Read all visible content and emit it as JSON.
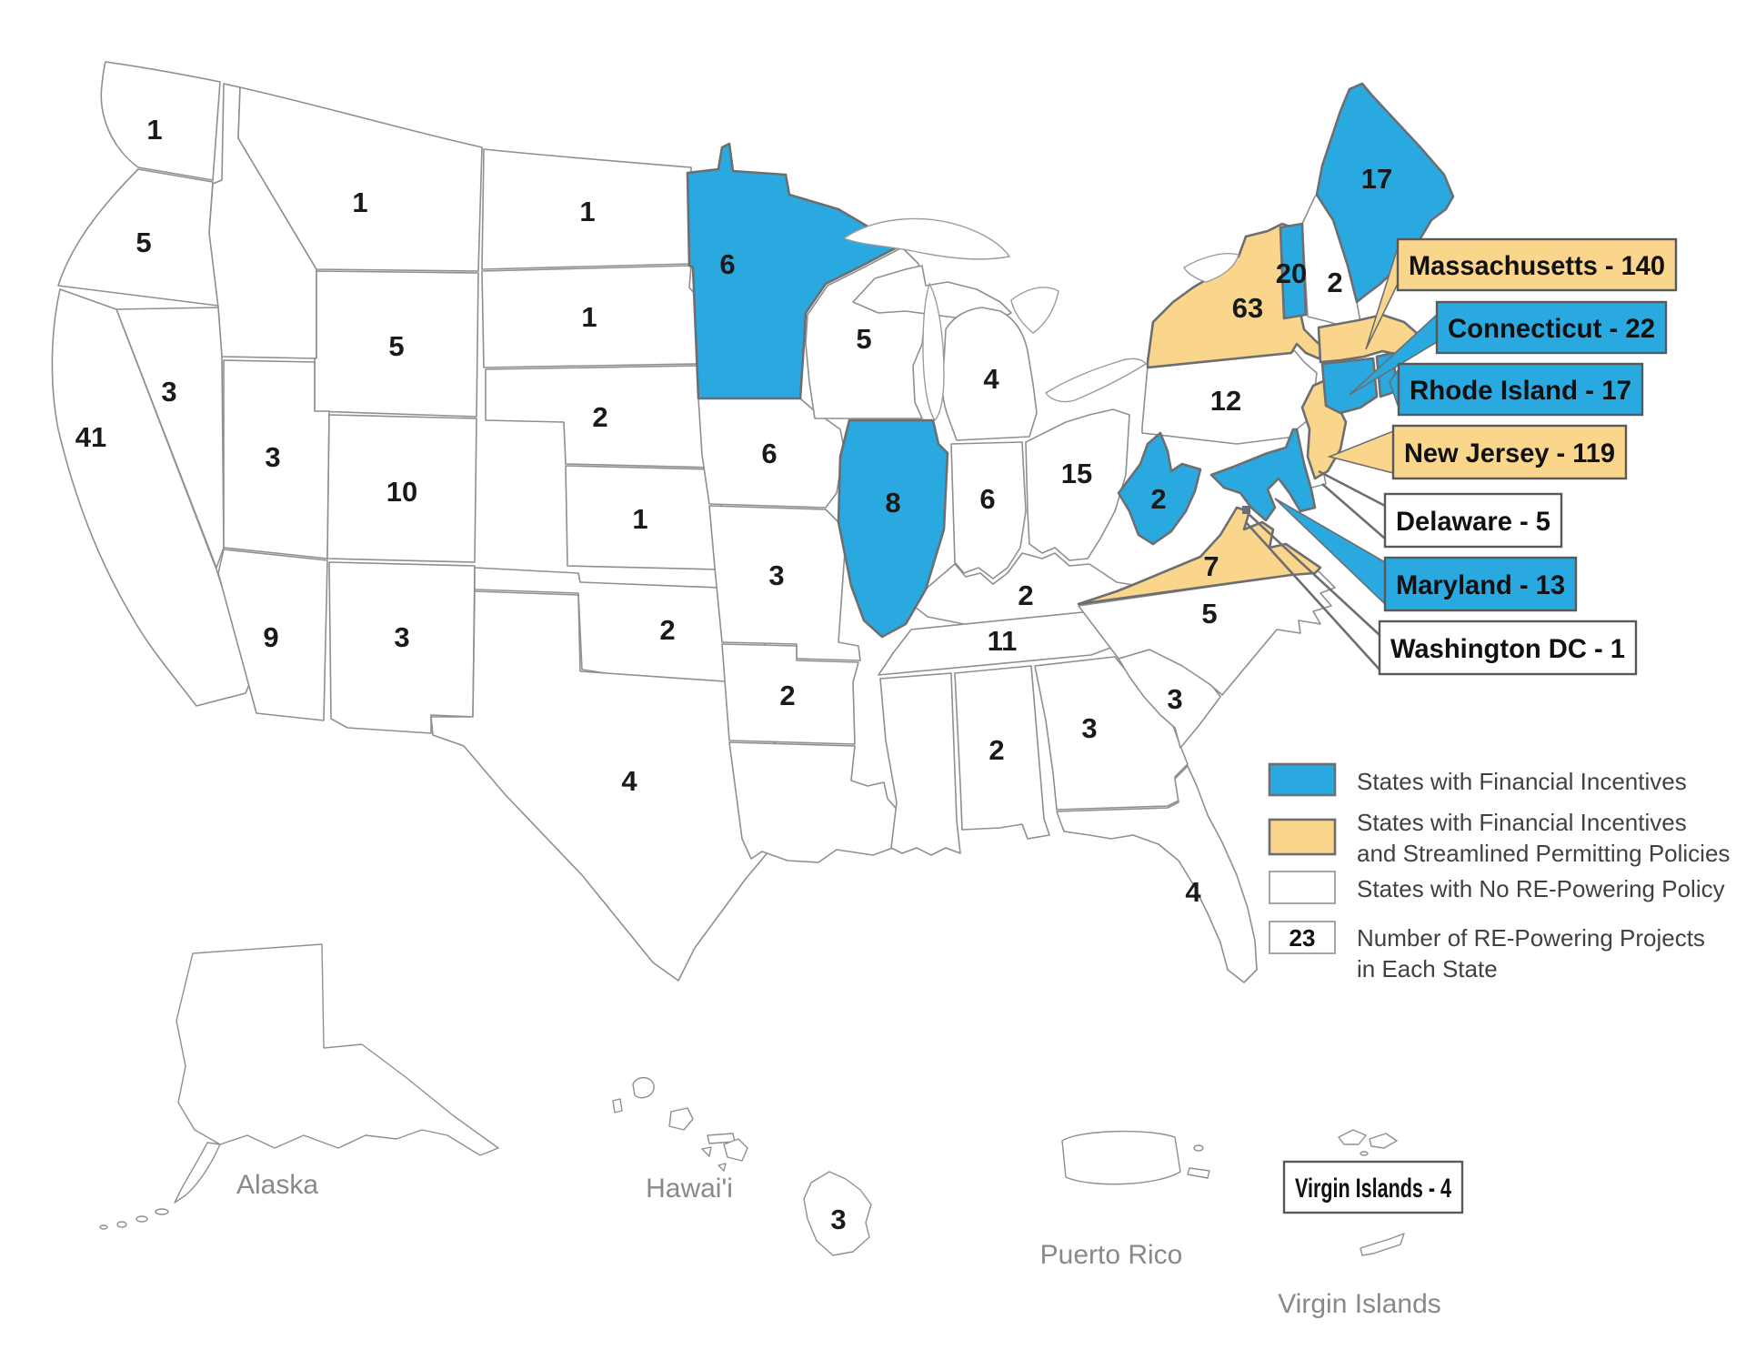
{
  "colors": {
    "blue": "#29A9E0",
    "tan": "#FAD68C",
    "white": "#FFFFFF",
    "border_gray": "#6D6E71",
    "label_gray": "#868A8D"
  },
  "legend": {
    "items": [
      {
        "swatch": "blue",
        "swatch_text": "",
        "label": "States with Financial Incentives",
        "label2": ""
      },
      {
        "swatch": "tan",
        "swatch_text": "",
        "label": "States with Financial Incentives",
        "label2": "and Streamlined Permitting Policies"
      },
      {
        "swatch": "white",
        "swatch_text": "",
        "label": "States with No RE-Powering Policy",
        "label2": ""
      },
      {
        "swatch": "white",
        "swatch_text": "23",
        "label": "Number of RE-Powering Projects",
        "label2": "in Each State"
      }
    ]
  },
  "states": [
    {
      "abbr": "WA",
      "name": "Washington",
      "projects": 1,
      "policy": "none"
    },
    {
      "abbr": "OR",
      "name": "Oregon",
      "projects": 5,
      "policy": "none"
    },
    {
      "abbr": "CA",
      "name": "California",
      "projects": 41,
      "policy": "none"
    },
    {
      "abbr": "NV",
      "name": "Nevada",
      "projects": 3,
      "policy": "none"
    },
    {
      "abbr": "ID",
      "name": "Idaho",
      "projects": null,
      "policy": "none"
    },
    {
      "abbr": "MT",
      "name": "Montana",
      "projects": 1,
      "policy": "none"
    },
    {
      "abbr": "WY",
      "name": "Wyoming",
      "projects": 5,
      "policy": "none"
    },
    {
      "abbr": "UT",
      "name": "Utah",
      "projects": 3,
      "policy": "none"
    },
    {
      "abbr": "CO",
      "name": "Colorado",
      "projects": 10,
      "policy": "none"
    },
    {
      "abbr": "AZ",
      "name": "Arizona",
      "projects": 9,
      "policy": "none"
    },
    {
      "abbr": "NM",
      "name": "New Mexico",
      "projects": 3,
      "policy": "none"
    },
    {
      "abbr": "ND",
      "name": "North Dakota",
      "projects": 1,
      "policy": "none"
    },
    {
      "abbr": "SD",
      "name": "South Dakota",
      "projects": 1,
      "policy": "none"
    },
    {
      "abbr": "NE",
      "name": "Nebraska",
      "projects": 2,
      "policy": "none"
    },
    {
      "abbr": "KS",
      "name": "Kansas",
      "projects": 1,
      "policy": "none"
    },
    {
      "abbr": "OK",
      "name": "Oklahoma",
      "projects": 2,
      "policy": "none"
    },
    {
      "abbr": "TX",
      "name": "Texas",
      "projects": 4,
      "policy": "none"
    },
    {
      "abbr": "MN",
      "name": "Minnesota",
      "projects": 6,
      "policy": "financial"
    },
    {
      "abbr": "IA",
      "name": "Iowa",
      "projects": 6,
      "policy": "none"
    },
    {
      "abbr": "MO",
      "name": "Missouri",
      "projects": 3,
      "policy": "none"
    },
    {
      "abbr": "AR",
      "name": "Arkansas",
      "projects": 2,
      "policy": "none"
    },
    {
      "abbr": "LA",
      "name": "Louisiana",
      "projects": null,
      "policy": "none"
    },
    {
      "abbr": "WI",
      "name": "Wisconsin",
      "projects": 5,
      "policy": "none"
    },
    {
      "abbr": "IL",
      "name": "Illinois",
      "projects": 8,
      "policy": "financial"
    },
    {
      "abbr": "MI",
      "name": "Michigan",
      "projects": 4,
      "policy": "none"
    },
    {
      "abbr": "IN",
      "name": "Indiana",
      "projects": 6,
      "policy": "none"
    },
    {
      "abbr": "OH",
      "name": "Ohio",
      "projects": 15,
      "policy": "none"
    },
    {
      "abbr": "KY",
      "name": "Kentucky",
      "projects": 2,
      "policy": "none"
    },
    {
      "abbr": "TN",
      "name": "Tennessee",
      "projects": 11,
      "policy": "none"
    },
    {
      "abbr": "MS",
      "name": "Mississippi",
      "projects": null,
      "policy": "none"
    },
    {
      "abbr": "AL",
      "name": "Alabama",
      "projects": 2,
      "policy": "none"
    },
    {
      "abbr": "GA",
      "name": "Georgia",
      "projects": 3,
      "policy": "none"
    },
    {
      "abbr": "SC",
      "name": "South Carolina",
      "projects": 3,
      "policy": "none"
    },
    {
      "abbr": "NC",
      "name": "North Carolina",
      "projects": 5,
      "policy": "none"
    },
    {
      "abbr": "FL",
      "name": "Florida",
      "projects": 4,
      "policy": "none"
    },
    {
      "abbr": "WV",
      "name": "West Virginia",
      "projects": 2,
      "policy": "financial"
    },
    {
      "abbr": "VA",
      "name": "Virginia",
      "projects": 7,
      "policy": "financial_streamlined"
    },
    {
      "abbr": "PA",
      "name": "Pennsylvania",
      "projects": 12,
      "policy": "none"
    },
    {
      "abbr": "NY",
      "name": "New York",
      "projects": 63,
      "policy": "financial_streamlined"
    },
    {
      "abbr": "VT",
      "name": "Vermont",
      "projects": 20,
      "policy": "financial"
    },
    {
      "abbr": "NH",
      "name": "New Hampshire",
      "projects": 2,
      "policy": "none"
    },
    {
      "abbr": "ME",
      "name": "Maine",
      "projects": 17,
      "policy": "financial"
    },
    {
      "abbr": "MA",
      "name": "Massachusetts",
      "projects": 140,
      "policy": "financial_streamlined"
    },
    {
      "abbr": "CT",
      "name": "Connecticut",
      "projects": 22,
      "policy": "financial"
    },
    {
      "abbr": "RI",
      "name": "Rhode Island",
      "projects": 17,
      "policy": "financial"
    },
    {
      "abbr": "NJ",
      "name": "New Jersey",
      "projects": 119,
      "policy": "financial_streamlined"
    },
    {
      "abbr": "DE",
      "name": "Delaware",
      "projects": 5,
      "policy": "none"
    },
    {
      "abbr": "MD",
      "name": "Maryland",
      "projects": 13,
      "policy": "financial"
    },
    {
      "abbr": "DC",
      "name": "Washington DC",
      "projects": 1,
      "policy": "none"
    },
    {
      "abbr": "AK",
      "name": "Alaska",
      "projects": null,
      "policy": "none"
    },
    {
      "abbr": "HI",
      "name": "Hawai'i",
      "projects": 3,
      "policy": "none"
    },
    {
      "abbr": "PR",
      "name": "Puerto Rico",
      "projects": null,
      "policy": "none"
    },
    {
      "abbr": "VI",
      "name": "Virgin Islands",
      "projects": 4,
      "policy": "none"
    }
  ],
  "callouts": [
    {
      "state": "MA",
      "label": "Massachusetts - 140",
      "fill": "tan"
    },
    {
      "state": "CT",
      "label": "Connecticut - 22",
      "fill": "blue"
    },
    {
      "state": "RI",
      "label": "Rhode Island - 17",
      "fill": "blue"
    },
    {
      "state": "NJ",
      "label": "New Jersey - 119",
      "fill": "tan"
    },
    {
      "state": "DE",
      "label": "Delaware - 5",
      "fill": "white"
    },
    {
      "state": "MD",
      "label": "Maryland - 13",
      "fill": "blue"
    },
    {
      "state": "DC",
      "label": "Washington DC - 1",
      "fill": "white"
    },
    {
      "state": "VI",
      "label": "Virgin Islands - 4",
      "fill": "white"
    }
  ],
  "region_labels": {
    "alaska": "Alaska",
    "hawaii": "Hawai'i",
    "puerto_rico": "Puerto Rico",
    "virgin_islands": "Virgin Islands"
  }
}
